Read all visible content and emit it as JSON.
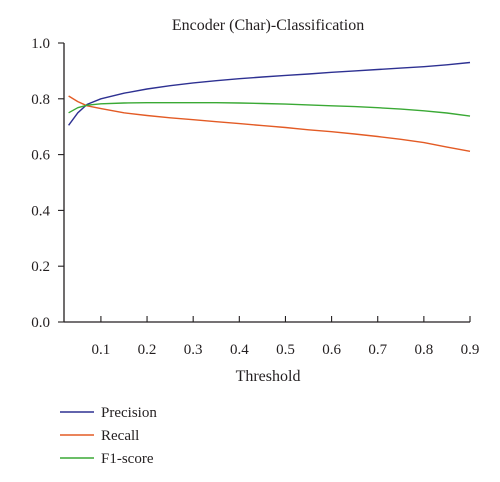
{
  "chart_data": {
    "type": "line",
    "title": "Encoder (Char)-Classification",
    "xlabel": "Threshold",
    "ylabel": "",
    "xlim": [
      0.02,
      0.9
    ],
    "ylim": [
      0.0,
      1.0
    ],
    "xticks": [
      "0.1",
      "0.2",
      "0.3",
      "0.4",
      "0.5",
      "0.6",
      "0.7",
      "0.8",
      "0.9"
    ],
    "yticks": [
      "0.0",
      "0.2",
      "0.4",
      "0.6",
      "0.8",
      "1.0"
    ],
    "grid": false,
    "legend_position": "bottom-left",
    "x": [
      0.03,
      0.05,
      0.07,
      0.1,
      0.15,
      0.2,
      0.25,
      0.3,
      0.35,
      0.4,
      0.45,
      0.5,
      0.55,
      0.6,
      0.65,
      0.7,
      0.75,
      0.8,
      0.85,
      0.9
    ],
    "series": [
      {
        "name": "Precision",
        "color": "#2e3192",
        "values": [
          0.705,
          0.75,
          0.78,
          0.8,
          0.82,
          0.835,
          0.847,
          0.857,
          0.865,
          0.872,
          0.878,
          0.884,
          0.889,
          0.895,
          0.9,
          0.905,
          0.91,
          0.915,
          0.922,
          0.93
        ]
      },
      {
        "name": "Recall",
        "color": "#e35b25",
        "values": [
          0.81,
          0.79,
          0.775,
          0.765,
          0.75,
          0.74,
          0.732,
          0.725,
          0.718,
          0.711,
          0.704,
          0.697,
          0.689,
          0.682,
          0.674,
          0.665,
          0.655,
          0.643,
          0.627,
          0.612
        ]
      },
      {
        "name": "F1-score",
        "color": "#3aa935",
        "values": [
          0.75,
          0.768,
          0.777,
          0.782,
          0.785,
          0.786,
          0.786,
          0.786,
          0.786,
          0.785,
          0.783,
          0.781,
          0.778,
          0.775,
          0.772,
          0.768,
          0.763,
          0.757,
          0.749,
          0.738
        ]
      }
    ]
  }
}
